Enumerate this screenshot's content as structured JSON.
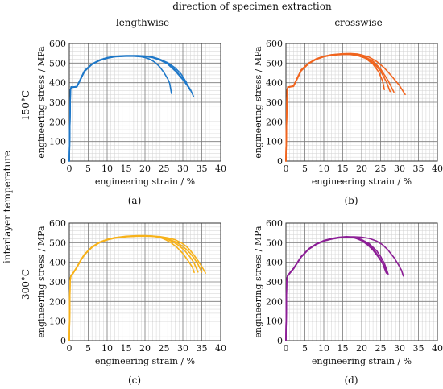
{
  "figure": {
    "top_title": "direction of specimen extraction",
    "col_titles": [
      "lengthwise",
      "crosswise"
    ],
    "row_group_label": "interlayer temperature",
    "row_labels": [
      "150°C",
      "300°C"
    ]
  },
  "chart_data": [
    {
      "type": "line",
      "panel_label": "(a)",
      "xlabel": "engineering strain / %",
      "ylabel": "engineering stress / MPa",
      "xlim": [
        0,
        40
      ],
      "ylim": [
        0,
        600
      ],
      "xticks": [
        0,
        5,
        10,
        15,
        20,
        25,
        30,
        35,
        40
      ],
      "yticks": [
        0,
        100,
        200,
        300,
        400,
        500,
        600
      ],
      "grid": true,
      "color": "#1f78c8",
      "series": [
        {
          "x": [
            0,
            0.3,
            0.5,
            1.0,
            2.0,
            3,
            4,
            6,
            8,
            10,
            12,
            15,
            18,
            20,
            22,
            24,
            26,
            28,
            30,
            31,
            32,
            32.8
          ],
          "y": [
            0,
            360,
            378,
            378,
            380,
            420,
            460,
            495,
            515,
            527,
            534,
            537,
            537,
            535,
            530,
            518,
            500,
            465,
            420,
            395,
            365,
            330
          ]
        },
        {
          "x": [
            0,
            0.3,
            0.5,
            1.0,
            2.0,
            3,
            4,
            6,
            8,
            10,
            12,
            15,
            18,
            20,
            22,
            24,
            26,
            28,
            30,
            31,
            32
          ],
          "y": [
            0,
            360,
            376,
            377,
            379,
            418,
            458,
            494,
            514,
            526,
            533,
            536,
            536,
            534,
            528,
            515,
            495,
            460,
            415,
            390,
            360
          ]
        },
        {
          "x": [
            0,
            0.3,
            0.5,
            1.0,
            2.0,
            3,
            4,
            6,
            8,
            10,
            12,
            15,
            17,
            19,
            20,
            21,
            22,
            23,
            24,
            25,
            26,
            26.5,
            27
          ],
          "y": [
            0,
            360,
            378,
            377,
            378,
            416,
            457,
            493,
            513,
            525,
            532,
            535,
            535,
            532,
            528,
            522,
            512,
            498,
            478,
            452,
            420,
            398,
            345
          ]
        },
        {
          "x": [
            0,
            0.3,
            0.5,
            1.0,
            2.0,
            3,
            4,
            6,
            8,
            10,
            12,
            15,
            18,
            20,
            22,
            24,
            26,
            28,
            29.5,
            31
          ],
          "y": [
            0,
            360,
            379,
            378,
            381,
            421,
            461,
            496,
            516,
            528,
            535,
            538,
            538,
            536,
            531,
            519,
            502,
            475,
            445,
            400
          ]
        }
      ]
    },
    {
      "type": "line",
      "panel_label": "(b)",
      "xlabel": "engineering strain / %",
      "ylabel": "engineering stress / MPa",
      "xlim": [
        0,
        40
      ],
      "ylim": [
        0,
        600
      ],
      "xticks": [
        0,
        5,
        10,
        15,
        20,
        25,
        30,
        35,
        40
      ],
      "yticks": [
        0,
        100,
        200,
        300,
        400,
        500,
        600
      ],
      "grid": true,
      "color": "#f0641e",
      "series": [
        {
          "x": [
            0,
            0.3,
            0.5,
            1.0,
            2.0,
            3,
            4,
            6,
            8,
            10,
            12,
            15,
            17,
            19,
            20,
            22,
            24,
            26,
            28,
            30,
            31.5
          ],
          "y": [
            0,
            360,
            378,
            380,
            384,
            425,
            465,
            500,
            522,
            535,
            543,
            548,
            549,
            546,
            542,
            530,
            508,
            475,
            432,
            385,
            340
          ]
        },
        {
          "x": [
            0,
            0.3,
            0.5,
            1.0,
            2.0,
            3,
            4,
            6,
            8,
            10,
            12,
            15,
            17,
            19,
            21,
            23,
            25,
            27,
            28.5
          ],
          "y": [
            0,
            360,
            376,
            378,
            382,
            422,
            462,
            498,
            520,
            533,
            541,
            546,
            546,
            541,
            530,
            510,
            470,
            410,
            352
          ]
        },
        {
          "x": [
            0,
            0.3,
            0.5,
            1.0,
            2.0,
            3,
            4,
            6,
            8,
            10,
            12,
            15,
            17,
            19,
            21,
            23,
            25,
            26.5,
            27.5
          ],
          "y": [
            0,
            360,
            377,
            378,
            381,
            420,
            460,
            497,
            519,
            532,
            540,
            544,
            544,
            538,
            525,
            502,
            460,
            405,
            355
          ]
        },
        {
          "x": [
            0,
            0.3,
            0.5,
            1.0,
            2.0,
            3,
            4,
            6,
            8,
            10,
            12,
            15,
            17,
            19,
            21,
            23,
            24.5,
            25.5,
            26
          ],
          "y": [
            0,
            360,
            379,
            379,
            383,
            424,
            463,
            499,
            521,
            534,
            542,
            547,
            547,
            540,
            525,
            495,
            455,
            410,
            365
          ]
        }
      ]
    },
    {
      "type": "line",
      "panel_label": "(c)",
      "xlabel": "engineering strain / %",
      "ylabel": "engineering stress / MPa",
      "xlim": [
        0,
        40
      ],
      "ylim": [
        0,
        600
      ],
      "xticks": [
        0,
        5,
        10,
        15,
        20,
        25,
        30,
        35,
        40
      ],
      "yticks": [
        0,
        100,
        200,
        300,
        400,
        500,
        600
      ],
      "grid": true,
      "color": "#f7b21a",
      "series": [
        {
          "x": [
            0,
            0.2,
            0.4,
            1.0,
            2.0,
            3,
            4,
            6,
            8,
            10,
            12,
            15,
            18,
            20,
            22,
            24,
            26,
            28,
            30,
            31,
            32,
            33,
            34,
            35,
            36
          ],
          "y": [
            0,
            300,
            330,
            345,
            375,
            410,
            440,
            478,
            502,
            516,
            525,
            532,
            535,
            535,
            534,
            531,
            525,
            515,
            495,
            480,
            460,
            435,
            408,
            378,
            345
          ]
        },
        {
          "x": [
            0,
            0.2,
            0.4,
            1.0,
            2.0,
            3,
            4,
            6,
            8,
            10,
            12,
            15,
            18,
            20,
            22,
            24,
            26,
            28,
            29.5,
            31,
            32,
            33,
            34,
            35
          ],
          "y": [
            0,
            300,
            328,
            343,
            373,
            408,
            438,
            476,
            500,
            514,
            523,
            530,
            533,
            533,
            532,
            528,
            520,
            505,
            488,
            465,
            445,
            420,
            390,
            350
          ]
        },
        {
          "x": [
            0,
            0.2,
            0.4,
            1.0,
            2.0,
            3,
            4,
            6,
            8,
            10,
            12,
            15,
            18,
            20,
            22,
            24,
            26,
            27.5,
            29,
            30.5,
            32,
            33,
            34
          ],
          "y": [
            0,
            300,
            329,
            344,
            374,
            409,
            439,
            477,
            501,
            515,
            524,
            531,
            534,
            534,
            533,
            528,
            517,
            503,
            485,
            460,
            425,
            395,
            350
          ]
        },
        {
          "x": [
            0,
            0.2,
            0.4,
            1.0,
            2.0,
            3,
            4,
            6,
            8,
            10,
            12,
            15,
            18,
            20,
            22,
            24,
            25.5,
            27,
            28.5,
            30,
            31.5,
            32.5,
            33
          ],
          "y": [
            0,
            300,
            331,
            346,
            376,
            411,
            441,
            479,
            503,
            517,
            526,
            533,
            536,
            536,
            534,
            527,
            515,
            498,
            475,
            445,
            405,
            375,
            348
          ]
        }
      ]
    },
    {
      "type": "line",
      "panel_label": "(d)",
      "xlabel": "engineering strain / %",
      "ylabel": "engineering stress / MPa",
      "xlim": [
        0,
        40
      ],
      "ylim": [
        0,
        600
      ],
      "xticks": [
        0,
        5,
        10,
        15,
        20,
        25,
        30,
        35,
        40
      ],
      "yticks": [
        0,
        100,
        200,
        300,
        400,
        500,
        600
      ],
      "grid": true,
      "color": "#8c1e96",
      "series": [
        {
          "x": [
            0,
            0.2,
            0.4,
            1.0,
            2.0,
            3,
            4,
            6,
            8,
            10,
            12,
            14,
            16,
            18,
            20,
            22,
            24,
            25.5,
            27,
            28.5,
            29.5,
            30.5,
            31
          ],
          "y": [
            0,
            300,
            330,
            345,
            368,
            398,
            428,
            468,
            493,
            510,
            520,
            527,
            530,
            530,
            528,
            522,
            508,
            490,
            462,
            425,
            395,
            360,
            330
          ]
        },
        {
          "x": [
            0,
            0.2,
            0.4,
            1.0,
            2.0,
            3,
            4,
            6,
            8,
            10,
            12,
            14,
            16,
            18,
            20,
            22,
            24,
            25,
            26,
            27
          ],
          "y": [
            0,
            300,
            328,
            343,
            366,
            396,
            426,
            466,
            491,
            508,
            518,
            525,
            528,
            526,
            516,
            495,
            458,
            430,
            395,
            340
          ]
        },
        {
          "x": [
            0,
            0.2,
            0.4,
            1.0,
            2.0,
            3,
            4,
            6,
            8,
            10,
            12,
            14,
            16,
            18,
            20,
            22,
            23.5,
            25,
            26,
            26.5
          ],
          "y": [
            0,
            300,
            329,
            344,
            367,
            397,
            427,
            467,
            492,
            509,
            519,
            526,
            529,
            525,
            512,
            488,
            458,
            415,
            380,
            348
          ]
        },
        {
          "x": [
            0,
            0.2,
            0.4,
            1.0,
            2.0,
            3,
            4,
            6,
            8,
            10,
            12,
            14,
            16,
            18,
            20,
            21.5,
            23,
            24.5,
            25.5,
            26.5
          ],
          "y": [
            0,
            300,
            331,
            346,
            369,
            399,
            429,
            469,
            494,
            511,
            521,
            528,
            531,
            527,
            510,
            490,
            462,
            425,
            395,
            345
          ]
        }
      ]
    }
  ]
}
